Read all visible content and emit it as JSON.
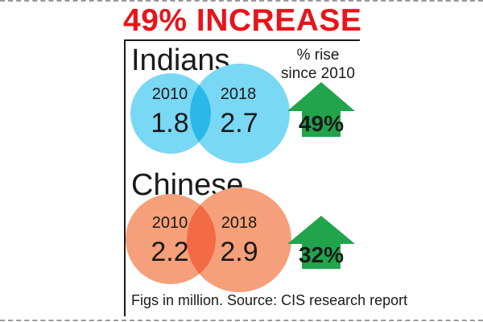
{
  "headline": "49% INCREASE",
  "rise_note": [
    "% rise",
    "since 2010"
  ],
  "source": "Figs in million. Source: CIS research report",
  "colors": {
    "headline": "#e8141c",
    "indians_circle": "#79d8f4",
    "indians_overlap": "#2ab8e8",
    "chinese_circle": "#f5a07a",
    "chinese_overlap": "#f26b45",
    "arrow": "#21a44b",
    "text": "#1a1a1a"
  },
  "chart_data": [
    {
      "type": "venn-comparison",
      "title": "Indians",
      "unit": "million",
      "categories": [
        "2010",
        "2018"
      ],
      "values": [
        1.8,
        2.7
      ],
      "value_labels": [
        "1.8",
        "2.7"
      ],
      "change_label": "49%",
      "change_pct": 49
    },
    {
      "type": "venn-comparison",
      "title": "Chinese",
      "unit": "million",
      "categories": [
        "2010",
        "2018"
      ],
      "values": [
        2.2,
        2.9
      ],
      "value_labels": [
        "2.2",
        "2.9"
      ],
      "change_label": "32%",
      "change_pct": 32
    }
  ]
}
